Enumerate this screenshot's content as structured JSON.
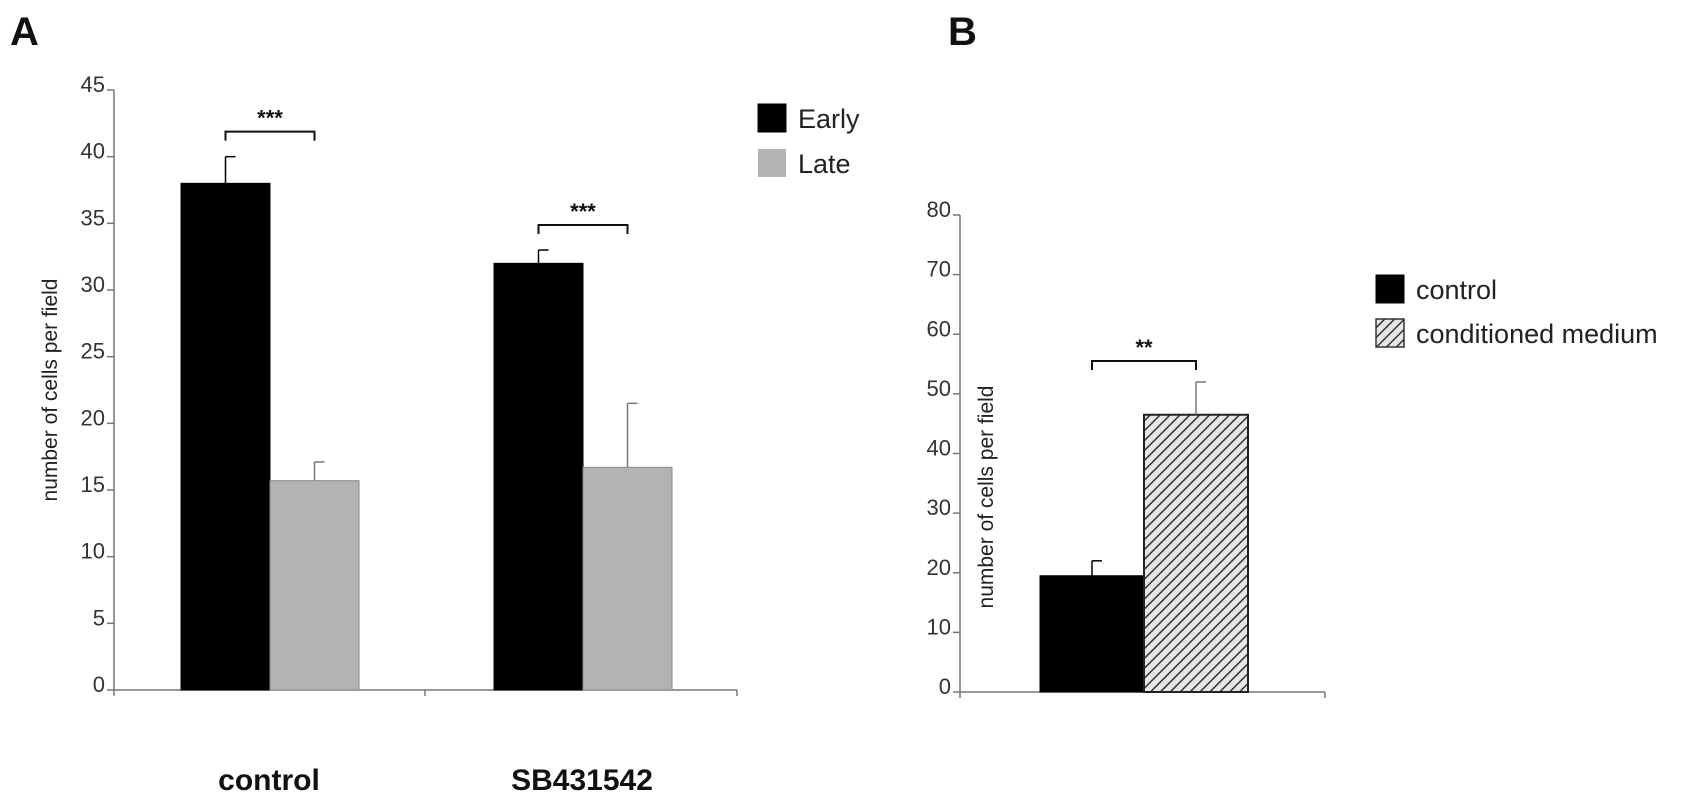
{
  "panels": {
    "a": {
      "label": "A"
    },
    "b": {
      "label": "B"
    }
  },
  "chart_data": [
    {
      "type": "bar",
      "panel": "A",
      "categories": [
        "control",
        "SB431542"
      ],
      "ylabel": "number of cells per field",
      "ylim": [
        0,
        45
      ],
      "yticks": [
        0,
        5,
        10,
        15,
        20,
        25,
        30,
        35,
        40,
        45
      ],
      "grid": false,
      "legend_position": "top-right",
      "series": [
        {
          "name": "Early",
          "values": [
            38,
            32
          ],
          "errors": [
            2,
            1
          ],
          "color": "#000000",
          "pattern": "solid"
        },
        {
          "name": "Late",
          "values": [
            15.7,
            16.7
          ],
          "errors": [
            1.4,
            4.8
          ],
          "color": "#b3b3b3",
          "pattern": "solid"
        }
      ],
      "annotations": [
        {
          "text": "***",
          "category": "control"
        },
        {
          "text": "***",
          "category": "SB431542"
        }
      ]
    },
    {
      "type": "bar",
      "panel": "B",
      "categories": [
        ""
      ],
      "ylabel": "number of cells per field",
      "ylim": [
        0,
        80
      ],
      "yticks": [
        0,
        10,
        20,
        30,
        40,
        50,
        60,
        70,
        80
      ],
      "grid": false,
      "legend_position": "right",
      "series": [
        {
          "name": "control",
          "values": [
            19.5
          ],
          "errors": [
            2.5
          ],
          "color": "#000000",
          "pattern": "solid"
        },
        {
          "name": "conditioned medium",
          "values": [
            46.5
          ],
          "errors": [
            5.5
          ],
          "color": "#bfbfbf",
          "pattern": "diagonal-hatch"
        }
      ],
      "annotations": [
        {
          "text": "**",
          "category": ""
        }
      ]
    }
  ]
}
